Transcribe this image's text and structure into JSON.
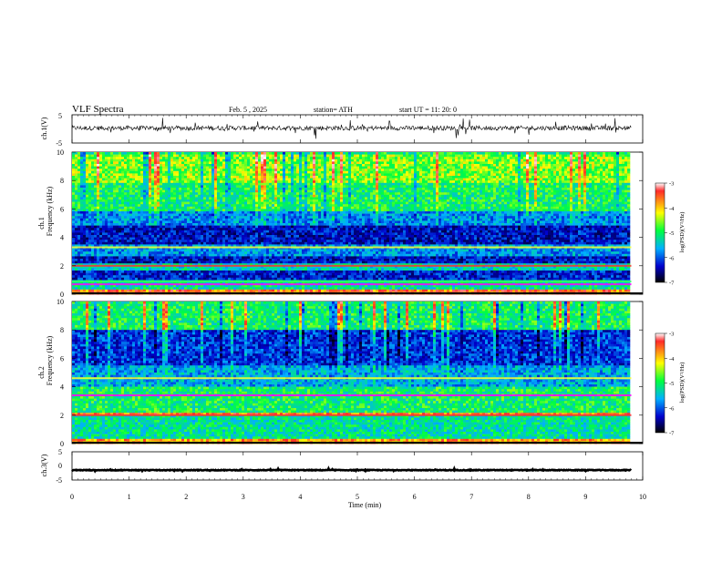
{
  "header": {
    "title": "VLF  Spectra",
    "date": "Feb. 5  , 2025",
    "station": "station= ATH",
    "start": "start  UT  =    11: 20: 0"
  },
  "x_axis": {
    "label": "Time  (min)",
    "ticks": [
      "0",
      "1",
      "2",
      "3",
      "4",
      "5",
      "6",
      "7",
      "8",
      "9",
      "10"
    ]
  },
  "panels": {
    "ch1v": {
      "ylabel": "ch.1(V)",
      "ticks": [
        "5",
        "-5"
      ]
    },
    "ch1": {
      "ylabel_line1": "ch.1",
      "ylabel_line2": "Frequency  (kHz)",
      "ticks": [
        "10",
        "8",
        "6",
        "4",
        "2",
        "0"
      ]
    },
    "ch2": {
      "ylabel_line1": "ch.2",
      "ylabel_line2": "Frequency  (kHz)",
      "ticks": [
        "10",
        "8",
        "6",
        "4",
        "2",
        "0"
      ]
    },
    "ch3v": {
      "ylabel": "ch.3(V)",
      "ticks": [
        "5",
        "0",
        "-5"
      ]
    }
  },
  "colorbar": {
    "label": "log(PSD)(V²/Hz)",
    "ticks": [
      "-3",
      "-4",
      "-5",
      "-6",
      "-7"
    ],
    "colors": [
      "#ffffff",
      "#ff2a2a",
      "#ffff00",
      "#00ff40",
      "#00b0ff",
      "#0000cc",
      "#000000"
    ]
  },
  "chart_data": {
    "type": "heatmap",
    "title": "VLF  Spectra",
    "xlabel": "Time  (min)",
    "xlim": [
      0,
      10
    ],
    "data_extent_min": 9.8,
    "colorbar_range": [
      -7,
      -3
    ],
    "panels": [
      {
        "name": "ch.1(V)",
        "kind": "waveform",
        "ylim": [
          -5,
          5
        ],
        "baseline": 0.3
      },
      {
        "name": "ch.1",
        "kind": "spectrogram",
        "ylabel": "Frequency  (kHz)",
        "ylim": [
          0,
          10
        ],
        "bands_khz": [
          {
            "from": 0,
            "to": 0.4,
            "level": -3.8
          },
          {
            "from": 0.4,
            "to": 1.0,
            "level": -5.2
          },
          {
            "from": 1.0,
            "to": 1.8,
            "level": -6.2
          },
          {
            "from": 1.8,
            "to": 2.2,
            "level": -5.3
          },
          {
            "from": 2.2,
            "to": 2.8,
            "level": -6.3
          },
          {
            "from": 2.8,
            "to": 3.6,
            "level": -5.7
          },
          {
            "from": 3.6,
            "to": 5.0,
            "level": -6.3
          },
          {
            "from": 5.0,
            "to": 6.0,
            "level": -5.7
          },
          {
            "from": 6.0,
            "to": 8.0,
            "level": -5.0
          },
          {
            "from": 8.0,
            "to": 10.0,
            "level": -4.6
          }
        ],
        "lines_khz": [
          2.0,
          3.3,
          0.7,
          0.9
        ]
      },
      {
        "name": "ch.2",
        "kind": "spectrogram",
        "ylabel": "Frequency  (kHz)",
        "ylim": [
          0,
          10
        ],
        "bands_khz": [
          {
            "from": 0,
            "to": 0.4,
            "level": -4.0
          },
          {
            "from": 0.4,
            "to": 2.0,
            "level": -5.2
          },
          {
            "from": 2.0,
            "to": 2.3,
            "level": -3.8
          },
          {
            "from": 2.3,
            "to": 4.0,
            "level": -5.0
          },
          {
            "from": 4.0,
            "to": 5.5,
            "level": -5.6
          },
          {
            "from": 5.5,
            "to": 8.0,
            "level": -6.1
          },
          {
            "from": 8.0,
            "to": 10.0,
            "level": -5.0
          }
        ],
        "lines_khz": [
          2.0,
          4.6,
          3.4
        ]
      },
      {
        "name": "ch.3(V)",
        "kind": "waveform",
        "ylim": [
          -5,
          5
        ],
        "baseline": -1.5
      }
    ]
  }
}
